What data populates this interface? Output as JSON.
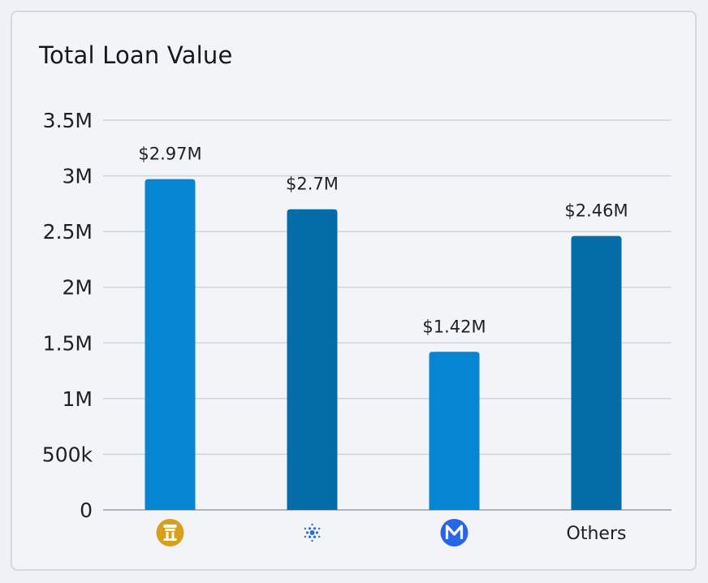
{
  "chart_data": {
    "type": "bar",
    "title": "Total Loan Value",
    "categories": [
      {
        "label": "",
        "icon": "gold-token-icon"
      },
      {
        "label": "",
        "icon": "cardano-icon"
      },
      {
        "label": "",
        "icon": "m-dollar-token-icon"
      },
      {
        "label": "Others",
        "icon": ""
      }
    ],
    "values": [
      2970000,
      2700000,
      1420000,
      2460000
    ],
    "data_labels": [
      "$2.97M",
      "$2.7M",
      "$1.42M",
      "$2.46M"
    ],
    "ylim": [
      0,
      3500000
    ],
    "yticks": [
      {
        "value": 0,
        "label": "0"
      },
      {
        "value": 500000,
        "label": "500k"
      },
      {
        "value": 1000000,
        "label": "1M"
      },
      {
        "value": 1500000,
        "label": "1.5M"
      },
      {
        "value": 2000000,
        "label": "2M"
      },
      {
        "value": 2500000,
        "label": "2.5M"
      },
      {
        "value": 3000000,
        "label": "3M"
      },
      {
        "value": 3500000,
        "label": "3.5M"
      }
    ],
    "grid": true,
    "colors": [
      "#0585d2",
      "#046da8",
      "#0585d2",
      "#046da8"
    ],
    "icon_colors": {
      "gold": "#d6a01e",
      "cardano": "#2e6fd8",
      "m_dollar": "#2766e8"
    }
  }
}
